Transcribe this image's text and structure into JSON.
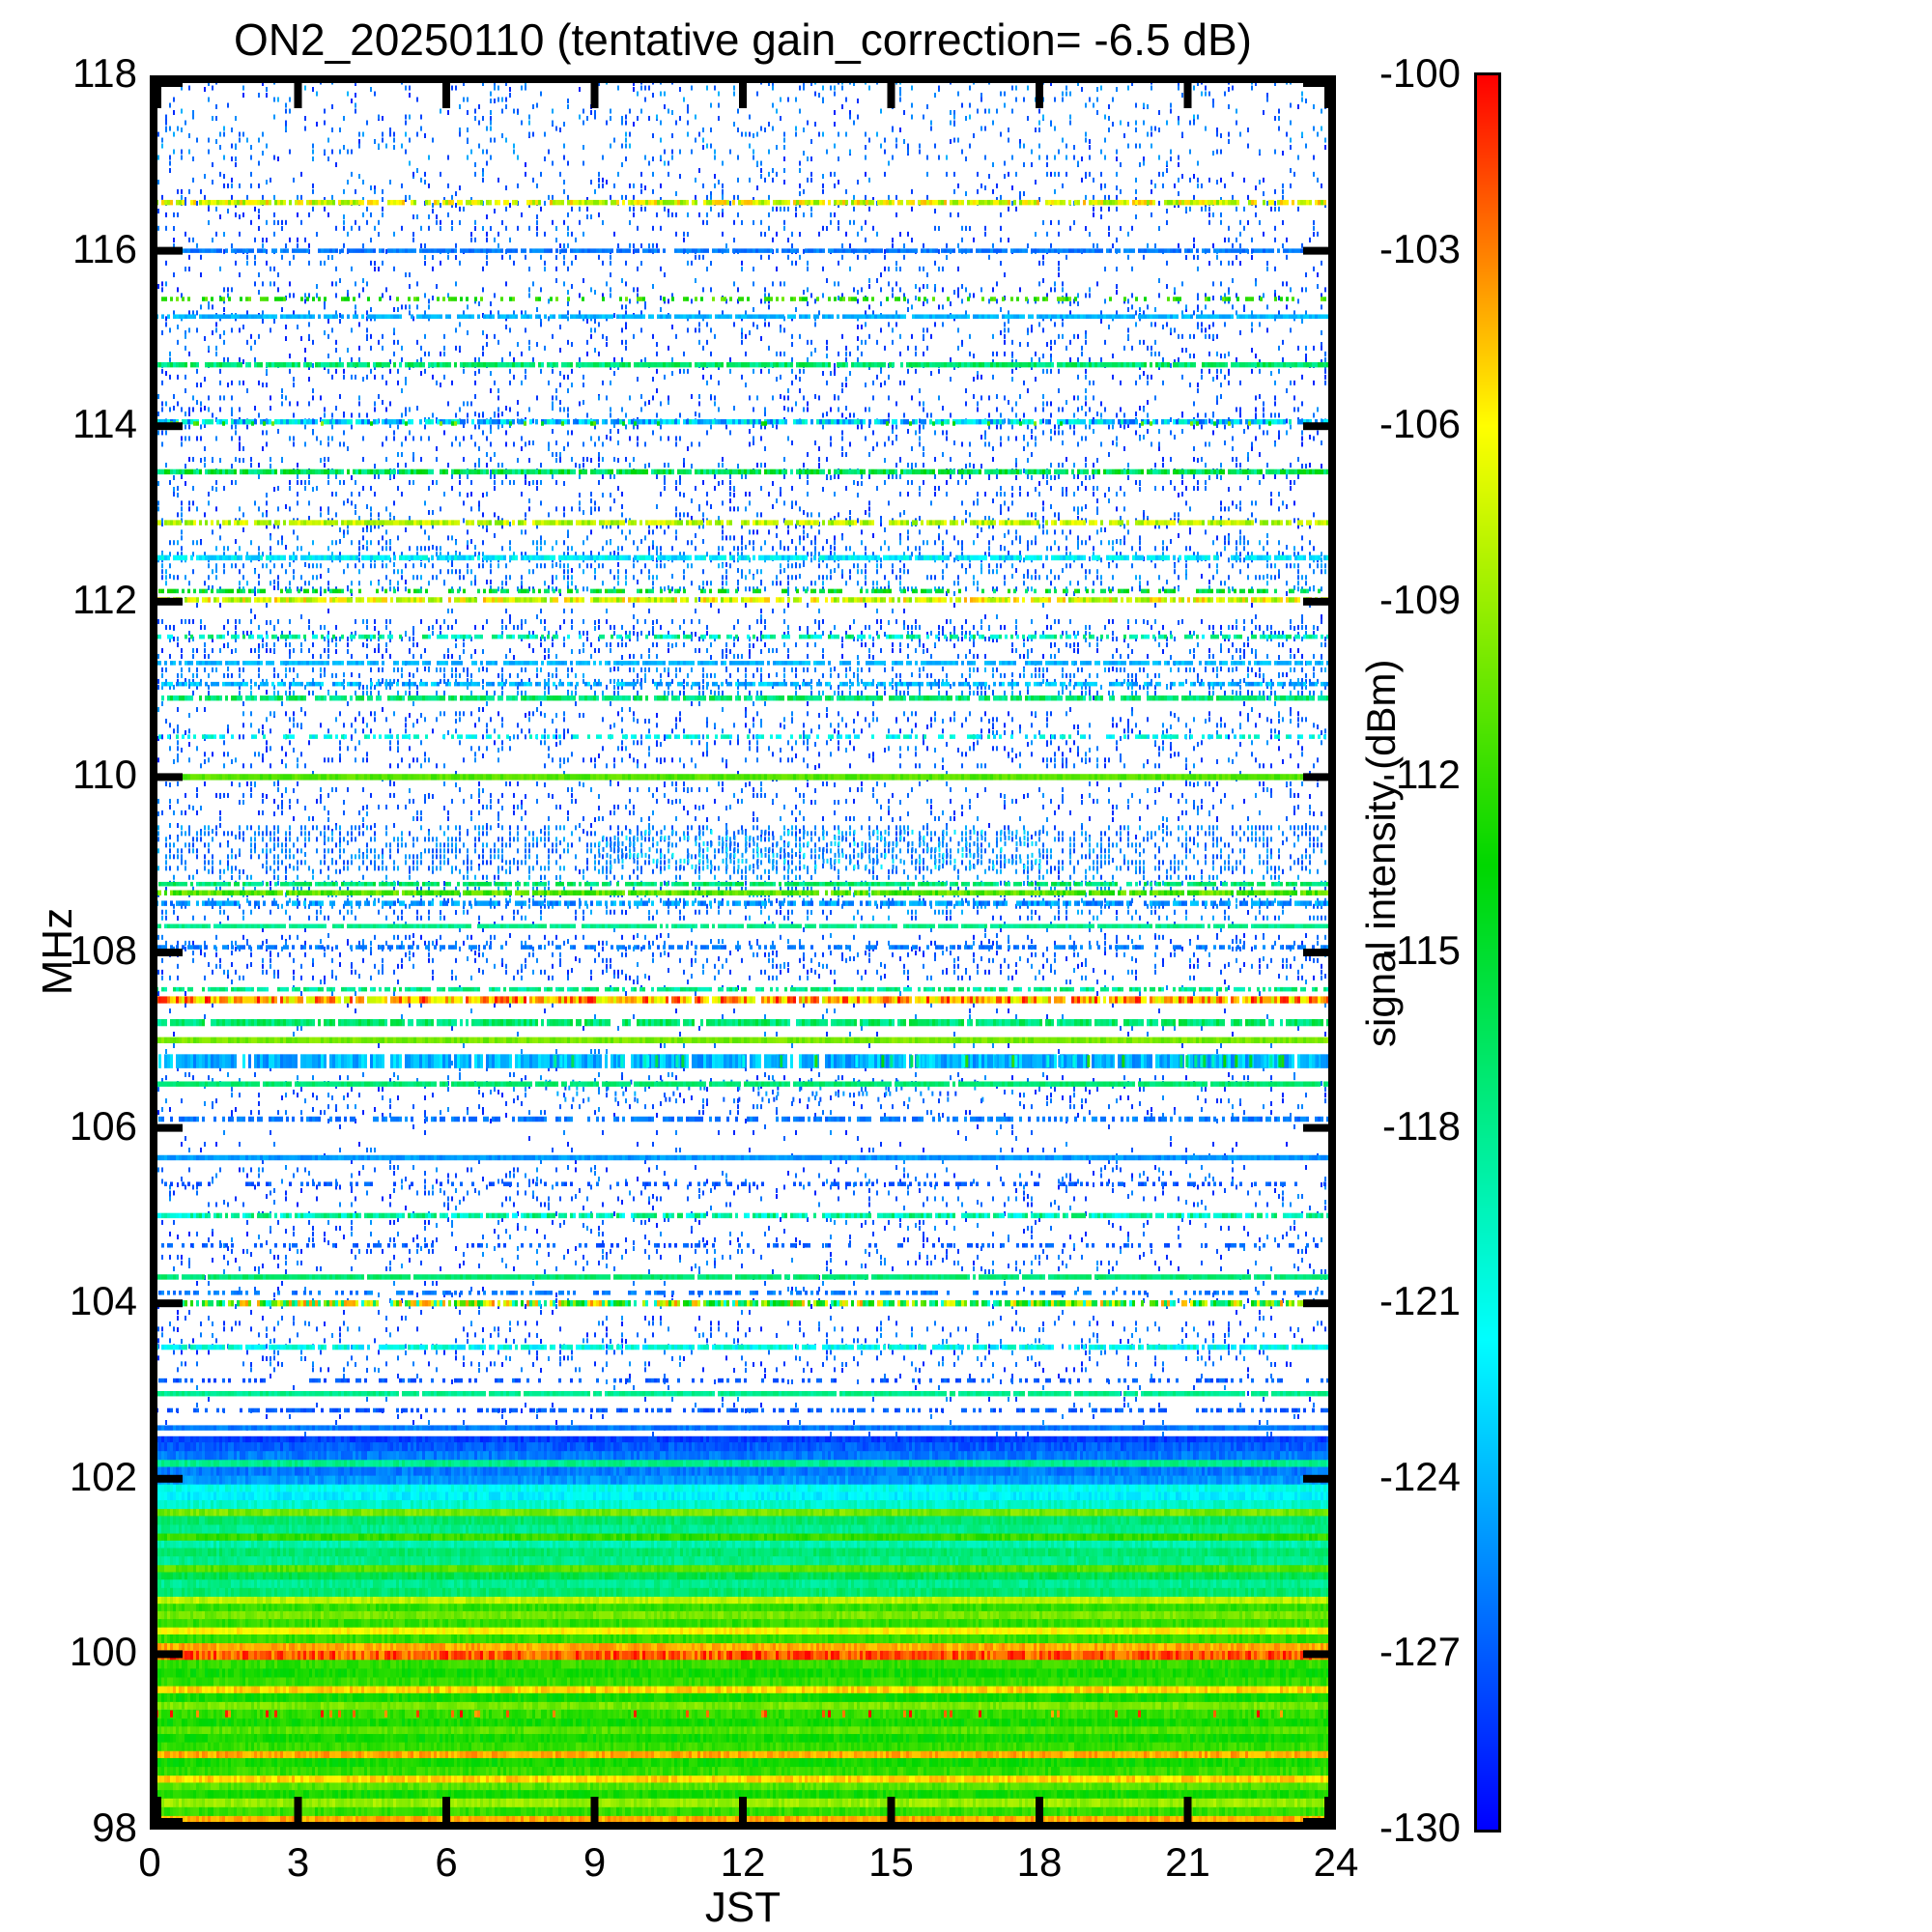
{
  "chart_data": {
    "type": "heatmap",
    "title": "ON2_20250110 (tentative gain_correction= -6.5 dB)",
    "xlabel": "JST",
    "ylabel": "MHz",
    "xlim": [
      0,
      24
    ],
    "ylim": [
      98,
      118
    ],
    "x_ticks": [
      0,
      3,
      6,
      9,
      12,
      15,
      18,
      21,
      24
    ],
    "y_ticks": [
      98,
      100,
      102,
      104,
      106,
      108,
      110,
      112,
      114,
      116,
      118
    ],
    "colorbar": {
      "label": "signal intensity (dBm)",
      "ticks": [
        -100,
        -103,
        -106,
        -109,
        -112,
        -115,
        -118,
        -121,
        -124,
        -127,
        -130
      ],
      "range_top_dbm": -100,
      "range_bottom_dbm": -130,
      "colormap_stops": [
        {
          "t": 0.0,
          "hex": "#0000ff"
        },
        {
          "t": 0.28,
          "hex": "#00ffff"
        },
        {
          "t": 0.55,
          "hex": "#00d700"
        },
        {
          "t": 0.8,
          "hex": "#ffff00"
        },
        {
          "t": 1.0,
          "hex": "#ff0000"
        }
      ]
    },
    "bands_format": "freq_MHz, thickness_MHz, intensity_dBm, time_coverage_0to1, dBm_jitter, optional_x_start_h, optional_x_end_h",
    "bands": [
      [
        98.02,
        0.12,
        -101,
        1,
        2
      ],
      [
        98.12,
        0.1,
        -104,
        1,
        1
      ],
      [
        98.21,
        0.11,
        -112,
        1,
        1
      ],
      [
        98.31,
        0.11,
        -109,
        1,
        1
      ],
      [
        98.41,
        0.11,
        -113,
        1,
        1
      ],
      [
        98.5,
        0.1,
        -111,
        1,
        1
      ],
      [
        98.58,
        0.09,
        -105,
        1,
        1
      ],
      [
        98.67,
        0.11,
        -112,
        1,
        1
      ],
      [
        98.77,
        0.11,
        -113,
        1,
        1
      ],
      [
        98.86,
        0.09,
        -104,
        1,
        1
      ],
      [
        98.95,
        0.11,
        -112,
        1,
        1
      ],
      [
        99.05,
        0.11,
        -113,
        1,
        1
      ],
      [
        99.14,
        0.1,
        -111,
        1,
        1
      ],
      [
        99.23,
        0.11,
        -113,
        1,
        1
      ],
      [
        99.32,
        0.11,
        -112,
        1,
        1
      ],
      [
        99.32,
        0.08,
        -102,
        0.1,
        2
      ],
      [
        99.42,
        0.1,
        -110,
        1,
        1
      ],
      [
        99.51,
        0.11,
        -113,
        1,
        1
      ],
      [
        99.6,
        0.09,
        -105,
        1,
        1
      ],
      [
        99.69,
        0.11,
        -112,
        1,
        1
      ],
      [
        99.79,
        0.11,
        -113,
        1,
        1
      ],
      [
        99.89,
        0.11,
        -112,
        1,
        1
      ],
      [
        99.99,
        0.11,
        -102,
        1,
        2
      ],
      [
        100.09,
        0.1,
        -104,
        1,
        1
      ],
      [
        100.18,
        0.11,
        -112,
        1,
        1
      ],
      [
        100.27,
        0.09,
        -106,
        1,
        1
      ],
      [
        100.36,
        0.11,
        -112,
        1,
        1
      ],
      [
        100.45,
        0.1,
        -110,
        1,
        1
      ],
      [
        100.54,
        0.1,
        -112,
        1,
        1
      ],
      [
        100.62,
        0.09,
        -108,
        1,
        1
      ],
      [
        100.71,
        0.11,
        -117,
        1,
        1
      ],
      [
        100.81,
        0.11,
        -118,
        1,
        1
      ],
      [
        100.9,
        0.1,
        -116,
        1,
        1
      ],
      [
        100.98,
        0.09,
        -111,
        1,
        1
      ],
      [
        101.07,
        0.11,
        -118,
        1,
        1
      ],
      [
        101.17,
        0.11,
        -117,
        1,
        1
      ],
      [
        101.26,
        0.1,
        -119,
        1,
        1
      ],
      [
        101.34,
        0.09,
        -112,
        1,
        1
      ],
      [
        101.43,
        0.11,
        -118,
        1,
        1
      ],
      [
        101.53,
        0.11,
        -117,
        1,
        1
      ],
      [
        101.62,
        0.09,
        -110,
        1,
        1
      ],
      [
        101.71,
        0.11,
        -120,
        1,
        1
      ],
      [
        101.81,
        0.11,
        -122,
        1,
        1
      ],
      [
        101.9,
        0.1,
        -121,
        1,
        1
      ],
      [
        101.99,
        0.11,
        -125,
        1,
        1
      ],
      [
        102.09,
        0.11,
        -126,
        1,
        1
      ],
      [
        102.18,
        0.09,
        -118,
        1,
        1
      ],
      [
        102.27,
        0.11,
        -126,
        1,
        1
      ],
      [
        102.37,
        0.11,
        -127,
        1,
        1
      ],
      [
        102.45,
        0.07,
        -128,
        1,
        1
      ],
      [
        102.58,
        0.06,
        -126,
        1,
        1
      ],
      [
        102.78,
        0.05,
        -127,
        0.5,
        1
      ],
      [
        102.97,
        0.06,
        -118,
        0.95,
        1
      ],
      [
        103.12,
        0.05,
        -127,
        0.35,
        1
      ],
      [
        103.5,
        0.06,
        -121,
        0.85,
        2
      ],
      [
        104.0,
        0.07,
        -112,
        0.85,
        9
      ],
      [
        104.12,
        0.05,
        -126,
        0.45,
        1
      ],
      [
        104.3,
        0.06,
        -117,
        0.95,
        1
      ],
      [
        104.66,
        0.05,
        -127,
        0.3,
        1
      ],
      [
        105.0,
        0.06,
        -119,
        0.85,
        3
      ],
      [
        105.36,
        0.05,
        -127,
        0.3,
        1
      ],
      [
        105.66,
        0.06,
        -125,
        1,
        1
      ],
      [
        106.1,
        0.06,
        -126,
        0.6,
        1
      ],
      [
        106.5,
        0.06,
        -117,
        0.95,
        1
      ],
      [
        106.76,
        0.16,
        -124,
        0.92,
        2
      ],
      [
        106.76,
        0.14,
        -119,
        0.2,
        7,
        8,
        24
      ],
      [
        107.0,
        0.07,
        -110,
        1,
        1
      ],
      [
        107.2,
        0.08,
        -117,
        0.9,
        2
      ],
      [
        107.46,
        0.08,
        -104,
        0.92,
        4
      ],
      [
        107.58,
        0.05,
        -118,
        0.7,
        2
      ],
      [
        108.06,
        0.05,
        -126,
        0.5,
        1
      ],
      [
        108.3,
        0.05,
        -118,
        0.9,
        1
      ],
      [
        108.56,
        0.06,
        -125,
        0.7,
        2
      ],
      [
        108.68,
        0.06,
        -111,
        0.95,
        2
      ],
      [
        108.78,
        0.05,
        -117,
        0.8,
        2
      ],
      [
        110.0,
        0.07,
        -111,
        1,
        1
      ],
      [
        110.46,
        0.05,
        -121,
        0.5,
        2
      ],
      [
        110.9,
        0.06,
        -117,
        0.85,
        2
      ],
      [
        111.06,
        0.05,
        -124,
        0.7,
        2
      ],
      [
        111.3,
        0.05,
        -124,
        0.8,
        1
      ],
      [
        111.6,
        0.05,
        -119,
        0.6,
        3
      ],
      [
        112.02,
        0.06,
        -107,
        0.85,
        3
      ],
      [
        112.12,
        0.05,
        -115,
        0.5,
        3
      ],
      [
        112.5,
        0.06,
        -122,
        0.85,
        2
      ],
      [
        112.9,
        0.06,
        -108,
        0.8,
        2
      ],
      [
        113.48,
        0.06,
        -116,
        0.9,
        3
      ],
      [
        114.05,
        0.06,
        -123,
        0.85,
        4
      ],
      [
        114.03,
        0.05,
        -112,
        0.12,
        3
      ],
      [
        114.7,
        0.06,
        -117,
        0.9,
        2
      ],
      [
        115.25,
        0.05,
        -124,
        0.85,
        1
      ],
      [
        115.45,
        0.05,
        -112,
        0.35,
        2
      ],
      [
        116.0,
        0.05,
        -126,
        0.85,
        1
      ],
      [
        116.55,
        0.06,
        -107,
        0.8,
        3
      ]
    ],
    "speckle_format": "freq_lo_MHz, freq_hi_MHz, density_0to1, intensity_dBm, dBm_jitter, optional_x_start_h, optional_x_end_h",
    "speckle_regions": [
      [
        102.45,
        118,
        0.05,
        -127,
        2
      ],
      [
        103.25,
        103.8,
        0.12,
        -127,
        2
      ],
      [
        104.4,
        104.95,
        0.1,
        -127,
        2
      ],
      [
        105.1,
        105.55,
        0.12,
        -127,
        2
      ],
      [
        106.2,
        106.6,
        0.1,
        -127,
        2
      ],
      [
        107.7,
        108.2,
        0.2,
        -127,
        2
      ],
      [
        108.4,
        108.95,
        0.22,
        -126,
        2
      ],
      [
        108.95,
        109.45,
        0.45,
        -126,
        2
      ],
      [
        109.5,
        109.95,
        0.16,
        -127,
        2
      ],
      [
        110.1,
        110.75,
        0.18,
        -127,
        2
      ],
      [
        110.95,
        111.25,
        0.35,
        -126,
        2
      ],
      [
        111.35,
        111.8,
        0.22,
        -127,
        2
      ],
      [
        112.15,
        112.7,
        0.28,
        -126,
        2
      ],
      [
        112.75,
        113.15,
        0.16,
        -127,
        2
      ],
      [
        113.2,
        113.65,
        0.18,
        -127,
        2
      ],
      [
        113.8,
        114.35,
        0.16,
        -127,
        2
      ],
      [
        114.5,
        115.05,
        0.13,
        -127,
        2
      ],
      [
        115.1,
        115.65,
        0.13,
        -127,
        2
      ],
      [
        115.8,
        116.35,
        0.11,
        -127,
        2
      ],
      [
        116.4,
        116.9,
        0.13,
        -127,
        2
      ],
      [
        117.0,
        117.95,
        0.11,
        -126,
        2
      ],
      [
        109.0,
        109.4,
        0.35,
        -124,
        3,
        9,
        18
      ],
      [
        106.3,
        106.55,
        0.15,
        -126,
        2,
        8,
        17
      ]
    ]
  }
}
